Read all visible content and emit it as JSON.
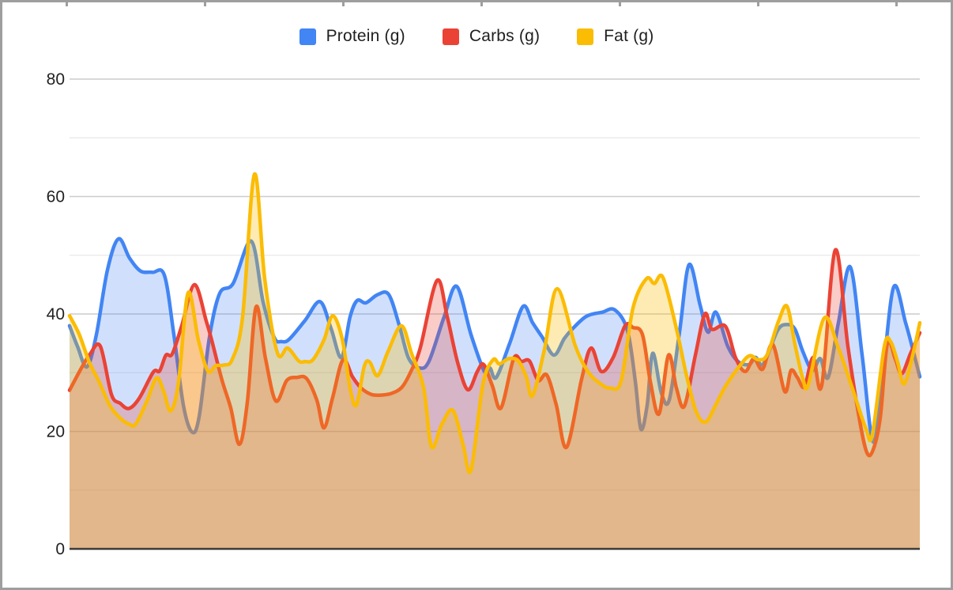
{
  "chart_data": {
    "type": "area",
    "smoothed": true,
    "stacked": false,
    "title": "",
    "xlabel": "",
    "ylabel": "",
    "x_unit": "px_offset_within_plot (no x labels shown)",
    "ylim": [
      0,
      80
    ],
    "y_ticks": [
      0,
      20,
      40,
      60,
      80
    ],
    "y_minor_ticks": [
      10,
      30,
      50,
      70
    ],
    "grid": true,
    "legend_position": "top",
    "axis_text_color": "#222222",
    "major_grid_color": "#cccccc",
    "minor_grid_color": "#e8e8e8",
    "baseline_color": "#3b3b3b",
    "series": [
      {
        "name": "Protein (g)",
        "color": "#4285F4",
        "fill_opacity": 0.25,
        "line_width": 4.5,
        "points": [
          [
            0,
            38
          ],
          [
            10,
            34.5
          ],
          [
            22,
            31
          ],
          [
            34,
            36.5
          ],
          [
            48,
            47.5
          ],
          [
            62,
            52.8
          ],
          [
            76,
            49.5
          ],
          [
            90,
            47.3
          ],
          [
            105,
            47.1
          ],
          [
            120,
            46.6
          ],
          [
            132,
            36.5
          ],
          [
            144,
            24.5
          ],
          [
            155,
            19.9
          ],
          [
            164,
            22.5
          ],
          [
            177,
            36
          ],
          [
            190,
            43.5
          ],
          [
            207,
            45.2
          ],
          [
            230,
            52.4
          ],
          [
            245,
            42
          ],
          [
            259,
            36
          ],
          [
            268,
            35.3
          ],
          [
            278,
            35.7
          ],
          [
            298,
            38.9
          ],
          [
            317,
            42.1
          ],
          [
            331,
            37.5
          ],
          [
            344,
            32.6
          ],
          [
            355,
            39.5
          ],
          [
            364,
            42.3
          ],
          [
            375,
            41.9
          ],
          [
            390,
            43.3
          ],
          [
            404,
            43.3
          ],
          [
            417,
            38.2
          ],
          [
            429,
            32.5
          ],
          [
            443,
            30.8
          ],
          [
            455,
            32
          ],
          [
            474,
            39.5
          ],
          [
            490,
            44.7
          ],
          [
            508,
            36.5
          ],
          [
            525,
            30.2
          ],
          [
            532,
            30.8
          ],
          [
            540,
            29.2
          ],
          [
            557,
            35
          ],
          [
            574,
            41.3
          ],
          [
            586,
            38.5
          ],
          [
            598,
            36.1
          ],
          [
            613,
            33
          ],
          [
            626,
            35.8
          ],
          [
            636,
            37.4
          ],
          [
            654,
            39.6
          ],
          [
            674,
            40.3
          ],
          [
            690,
            40.7
          ],
          [
            706,
            37.2
          ],
          [
            716,
            28.5
          ],
          [
            723,
            20.4
          ],
          [
            731,
            24.5
          ],
          [
            738,
            33.3
          ],
          [
            749,
            26.5
          ],
          [
            759,
            25.4
          ],
          [
            772,
            37
          ],
          [
            784,
            48.4
          ],
          [
            798,
            41.5
          ],
          [
            808,
            36.9
          ],
          [
            818,
            40.3
          ],
          [
            833,
            34.5
          ],
          [
            846,
            31.9
          ],
          [
            860,
            31.4
          ],
          [
            868,
            32.6
          ],
          [
            878,
            31.5
          ],
          [
            896,
            37.2
          ],
          [
            908,
            38.2
          ],
          [
            918,
            37.4
          ],
          [
            928,
            33.6
          ],
          [
            940,
            30.4
          ],
          [
            950,
            32.4
          ],
          [
            960,
            29.2
          ],
          [
            973,
            38.5
          ],
          [
            988,
            48
          ],
          [
            1003,
            33
          ],
          [
            1017,
            18.2
          ],
          [
            1029,
            29.5
          ],
          [
            1043,
            44.6
          ],
          [
            1058,
            38.5
          ],
          [
            1068,
            33.5
          ],
          [
            1076,
            29.3
          ]
        ]
      },
      {
        "name": "Carbs (g)",
        "color": "#EA4335",
        "fill_opacity": 0.27,
        "line_width": 4.5,
        "points": [
          [
            0,
            27
          ],
          [
            13,
            30.3
          ],
          [
            26,
            33.2
          ],
          [
            39,
            34.5
          ],
          [
            53,
            26.3
          ],
          [
            64,
            24.8
          ],
          [
            75,
            23.9
          ],
          [
            88,
            25.6
          ],
          [
            106,
            30.1
          ],
          [
            114,
            30.3
          ],
          [
            122,
            33
          ],
          [
            130,
            33.2
          ],
          [
            142,
            38
          ],
          [
            158,
            45
          ],
          [
            173,
            38.8
          ],
          [
            180,
            35.5
          ],
          [
            193,
            28.7
          ],
          [
            204,
            24
          ],
          [
            215,
            17.8
          ],
          [
            225,
            25
          ],
          [
            236,
            41.2
          ],
          [
            248,
            32.4
          ],
          [
            261,
            25.2
          ],
          [
            275,
            28.7
          ],
          [
            288,
            29.2
          ],
          [
            300,
            29
          ],
          [
            313,
            25.3
          ],
          [
            322,
            20.6
          ],
          [
            333,
            25.8
          ],
          [
            346,
            32.2
          ],
          [
            358,
            29.3
          ],
          [
            369,
            27.4
          ],
          [
            382,
            26.3
          ],
          [
            395,
            26.2
          ],
          [
            408,
            26.5
          ],
          [
            421,
            27.6
          ],
          [
            433,
            30.5
          ],
          [
            444,
            34.3
          ],
          [
            465,
            45.7
          ],
          [
            478,
            39.5
          ],
          [
            491,
            31.8
          ],
          [
            504,
            27.1
          ],
          [
            516,
            30.2
          ],
          [
            524,
            31.4
          ],
          [
            535,
            27.8
          ],
          [
            546,
            24
          ],
          [
            562,
            32.4
          ],
          [
            572,
            31.9
          ],
          [
            582,
            32
          ],
          [
            593,
            28.7
          ],
          [
            604,
            29.6
          ],
          [
            616,
            24.5
          ],
          [
            629,
            17.3
          ],
          [
            648,
            28.9
          ],
          [
            660,
            34.2
          ],
          [
            673,
            30.2
          ],
          [
            688,
            32.6
          ],
          [
            703,
            38
          ],
          [
            713,
            37.7
          ],
          [
            725,
            36.5
          ],
          [
            735,
            28.5
          ],
          [
            746,
            23
          ],
          [
            758,
            33
          ],
          [
            768,
            27.4
          ],
          [
            778,
            24.3
          ],
          [
            792,
            33
          ],
          [
            804,
            40
          ],
          [
            813,
            37.4
          ],
          [
            830,
            37.9
          ],
          [
            843,
            32.5
          ],
          [
            855,
            30.2
          ],
          [
            866,
            32.4
          ],
          [
            877,
            30.6
          ],
          [
            890,
            34.8
          ],
          [
            905,
            26.8
          ],
          [
            913,
            30.4
          ],
          [
            921,
            29.2
          ],
          [
            930,
            27.6
          ],
          [
            941,
            32.6
          ],
          [
            952,
            27.9
          ],
          [
            969,
            50.9
          ],
          [
            985,
            34.5
          ],
          [
            999,
            22.5
          ],
          [
            1009,
            16.4
          ],
          [
            1017,
            16.9
          ],
          [
            1026,
            22.4
          ],
          [
            1035,
            35
          ],
          [
            1045,
            32.3
          ],
          [
            1053,
            29.8
          ],
          [
            1064,
            33.2
          ],
          [
            1076,
            36.8
          ]
        ]
      },
      {
        "name": "Fat (g)",
        "color": "#FBBC04",
        "fill_opacity": 0.3,
        "line_width": 4.5,
        "points": [
          [
            0,
            39.7
          ],
          [
            12,
            36.6
          ],
          [
            25,
            31.8
          ],
          [
            38,
            28.3
          ],
          [
            51,
            24.4
          ],
          [
            63,
            22.4
          ],
          [
            76,
            21.2
          ],
          [
            84,
            21.3
          ],
          [
            98,
            25.2
          ],
          [
            110,
            29.1
          ],
          [
            119,
            26.9
          ],
          [
            128,
            23.5
          ],
          [
            138,
            28.5
          ],
          [
            150,
            43.6
          ],
          [
            163,
            35.6
          ],
          [
            175,
            30.3
          ],
          [
            185,
            31.2
          ],
          [
            195,
            31.3
          ],
          [
            206,
            32.3
          ],
          [
            219,
            39.5
          ],
          [
            234,
            63.8
          ],
          [
            247,
            46
          ],
          [
            263,
            33.4
          ],
          [
            276,
            34.2
          ],
          [
            290,
            32
          ],
          [
            298,
            31.9
          ],
          [
            308,
            32.2
          ],
          [
            322,
            35.6
          ],
          [
            333,
            39.7
          ],
          [
            345,
            35.8
          ],
          [
            355,
            27.4
          ],
          [
            363,
            24.5
          ],
          [
            373,
            31.1
          ],
          [
            380,
            31.8
          ],
          [
            390,
            29.5
          ],
          [
            403,
            33.6
          ],
          [
            420,
            38
          ],
          [
            433,
            33.2
          ],
          [
            448,
            27.5
          ],
          [
            458,
            17.4
          ],
          [
            471,
            21.2
          ],
          [
            485,
            23.6
          ],
          [
            498,
            17.8
          ],
          [
            508,
            13.4
          ],
          [
            523,
            28
          ],
          [
            536,
            32.2
          ],
          [
            544,
            31.5
          ],
          [
            556,
            32.4
          ],
          [
            568,
            32
          ],
          [
            578,
            29.3
          ],
          [
            586,
            26.1
          ],
          [
            601,
            34
          ],
          [
            617,
            44.3
          ],
          [
            640,
            34.6
          ],
          [
            656,
            30.2
          ],
          [
            671,
            28.2
          ],
          [
            684,
            27.4
          ],
          [
            698,
            28.6
          ],
          [
            713,
            41
          ],
          [
            730,
            46
          ],
          [
            740,
            45.2
          ],
          [
            751,
            46.2
          ],
          [
            768,
            37.5
          ],
          [
            781,
            29.4
          ],
          [
            793,
            23.4
          ],
          [
            805,
            21.6
          ],
          [
            818,
            24.6
          ],
          [
            831,
            27.9
          ],
          [
            850,
            31.5
          ],
          [
            861,
            32.9
          ],
          [
            872,
            32.2
          ],
          [
            883,
            33.1
          ],
          [
            897,
            38.7
          ],
          [
            908,
            41.3
          ],
          [
            918,
            34.8
          ],
          [
            928,
            29
          ],
          [
            935,
            28
          ],
          [
            955,
            39.3
          ],
          [
            973,
            34.2
          ],
          [
            993,
            26.4
          ],
          [
            1008,
            20.4
          ],
          [
            1016,
            19.5
          ],
          [
            1031,
            34.4
          ],
          [
            1039,
            35.3
          ],
          [
            1048,
            31.8
          ],
          [
            1056,
            28.1
          ],
          [
            1067,
            33
          ],
          [
            1076,
            38.5
          ]
        ]
      }
    ]
  }
}
